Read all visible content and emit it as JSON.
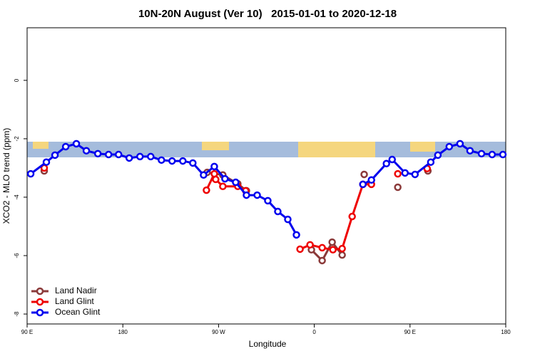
{
  "chart_data": {
    "type": "line",
    "title": "10N-20N August (Ver 10)   2015-01-01 to 2020-12-18",
    "xlabel": "Longitude",
    "ylabel": "XCO2 - MLO trend (ppm)",
    "xlim": [
      90,
      540
    ],
    "ylim": [
      -8.34,
      1.8
    ],
    "xticks": [
      {
        "value": 90,
        "label": "90 E"
      },
      180,
      {
        "value": 270,
        "label": "90 W"
      },
      {
        "value": 360,
        "label": "0"
      },
      {
        "value": 450,
        "label": "90 E"
      },
      {
        "value": 540,
        "label": "180"
      }
    ],
    "yticks": [
      -8,
      -6,
      -4,
      -2,
      0
    ],
    "legend": "lower left",
    "series": [
      {
        "name": "Land Nadir",
        "color": "#8b3a3a",
        "x": [
          106.1,
          180,
          259.3,
          274,
          288.1,
          296.2,
          330,
          357.3,
          367.4,
          376.8,
          386.2,
          395,
          406.9,
          420,
          438.5,
          450,
          466.8
        ],
        "values": [
          -3.1,
          null,
          -3.15,
          -3.24,
          -3.54,
          -3.78,
          null,
          -5.8,
          -6.17,
          -5.54,
          -5.98,
          null,
          -3.22,
          null,
          -3.66,
          null,
          -3.1
        ]
      },
      {
        "name": "Land Glint",
        "color": "#ee0000",
        "x": [
          106.1,
          180,
          258.6,
          266,
          267.3,
          274,
          288.1,
          295.5,
          320,
          346.6,
          356,
          367.4,
          377.5,
          386.2,
          395.6,
          405.7,
          413.7,
          425,
          438.5,
          450,
          466.1
        ],
        "values": [
          -3.0,
          null,
          -3.76,
          -3.2,
          -3.39,
          -3.63,
          -3.63,
          -3.78,
          null,
          -5.78,
          -5.63,
          -5.73,
          -5.8,
          -5.76,
          -4.66,
          -3.56,
          -3.56,
          null,
          -3.2,
          null,
          -3.02
        ]
      },
      {
        "name": "Ocean Glint",
        "color": "#0000ee",
        "x": [
          93.4,
          108.1,
          116.2,
          126.3,
          136.3,
          145.7,
          156.5,
          166.6,
          176,
          186,
          196.1,
          206.2,
          216.3,
          226.3,
          236.4,
          245.8,
          255.9,
          266,
          276,
          286.1,
          296.2,
          306.3,
          316.3,
          325.7,
          335.1,
          343.2,
          375,
          405.7,
          413.7,
          427.8,
          433.2,
          445.3,
          454.7,
          469.5,
          476.2,
          486.9,
          497,
          506.4,
          517.2,
          527.2,
          537.3
        ],
        "values": [
          -3.2,
          -2.8,
          -2.56,
          -2.27,
          -2.17,
          -2.41,
          -2.51,
          -2.54,
          -2.54,
          -2.66,
          -2.61,
          -2.61,
          -2.73,
          -2.76,
          -2.76,
          -2.83,
          -3.24,
          -2.95,
          -3.37,
          -3.49,
          -3.93,
          -3.93,
          -4.12,
          -4.49,
          -4.76,
          -5.29,
          null,
          -3.56,
          -3.41,
          -2.85,
          -2.71,
          -3.17,
          -3.22,
          -2.8,
          -2.56,
          -2.27,
          -2.17,
          -2.41,
          -2.51,
          -2.54,
          -2.54
        ]
      }
    ]
  }
}
